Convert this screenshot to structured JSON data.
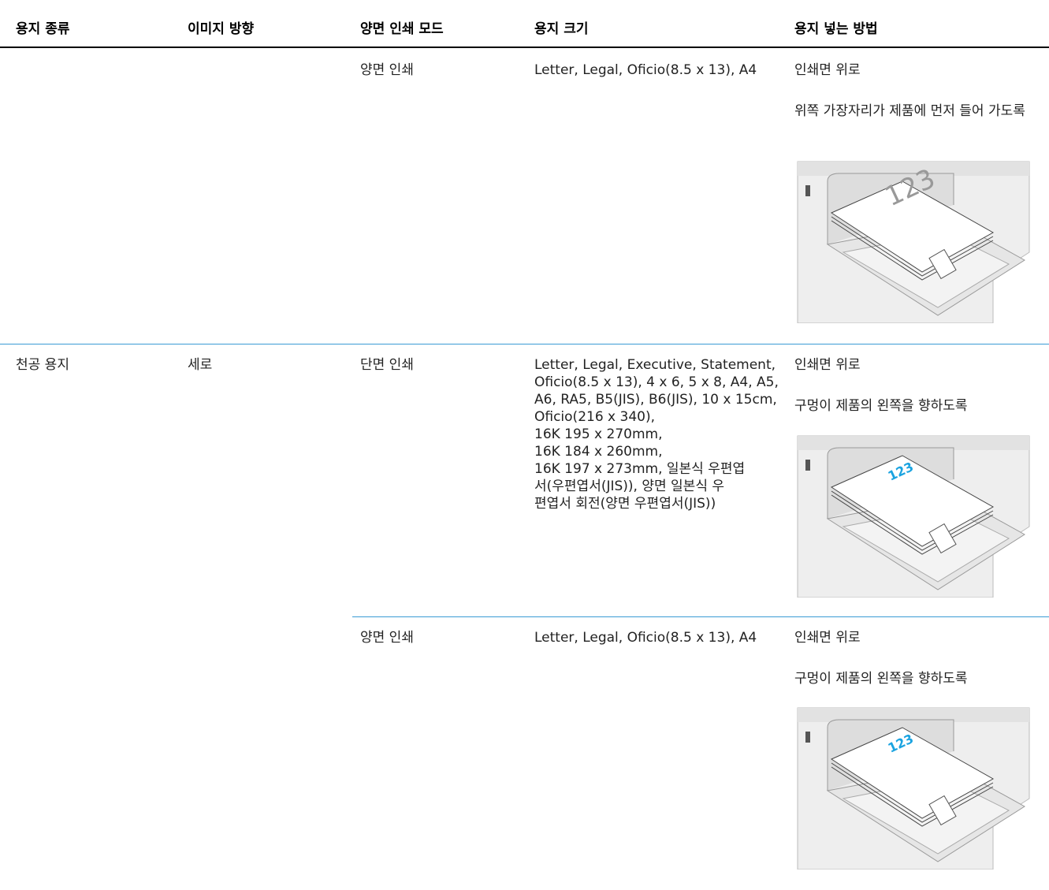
{
  "table": {
    "header": [
      "용지 종류",
      "이미지 방향",
      "양면 인쇄 모드",
      "용지 크기",
      "용지 넣는 방법"
    ],
    "rows": [
      {
        "mode": "양면 인쇄",
        "size": [
          "Letter, Legal, Oficio(8.5 x 13), A4"
        ],
        "load": [
          "인쇄면 위로",
          "위쪽 가장자리가 제품에 먼저 들어 가도록"
        ],
        "illustration": "123"
      },
      {
        "paper": "천공 용지",
        "orientation": "세로",
        "mode": "단면 인쇄",
        "size": [
          "Letter, Legal, Executive, Statement,",
          "Oficio(8.5 x 13), 4 x 6, 5 x 8, A4, A5,",
          "A6, RA5, B5(JIS), B6(JIS), 10 x 15cm,",
          "Oficio(216 x 340),",
          "16K 195 x 270mm,",
          "16K 184 x 260mm,",
          "16K 197 x 273mm, 일본식 우편엽",
          "서(우편엽서(JIS)), 양면 일본식 우",
          "편엽서 회전(양면 우편엽서(JIS))"
        ],
        "load": [
          "인쇄면 위로",
          "구멍이 제품의 왼쪽을 향하도록"
        ],
        "illustration": "123"
      },
      {
        "mode": "양면 인쇄",
        "size": [
          "Letter, Legal, Oficio(8.5 x 13), A4"
        ],
        "load": [
          "인쇄면 위로",
          "구멍이 제품의 왼쪽을 향하도록"
        ],
        "illustration": "123"
      }
    ]
  }
}
